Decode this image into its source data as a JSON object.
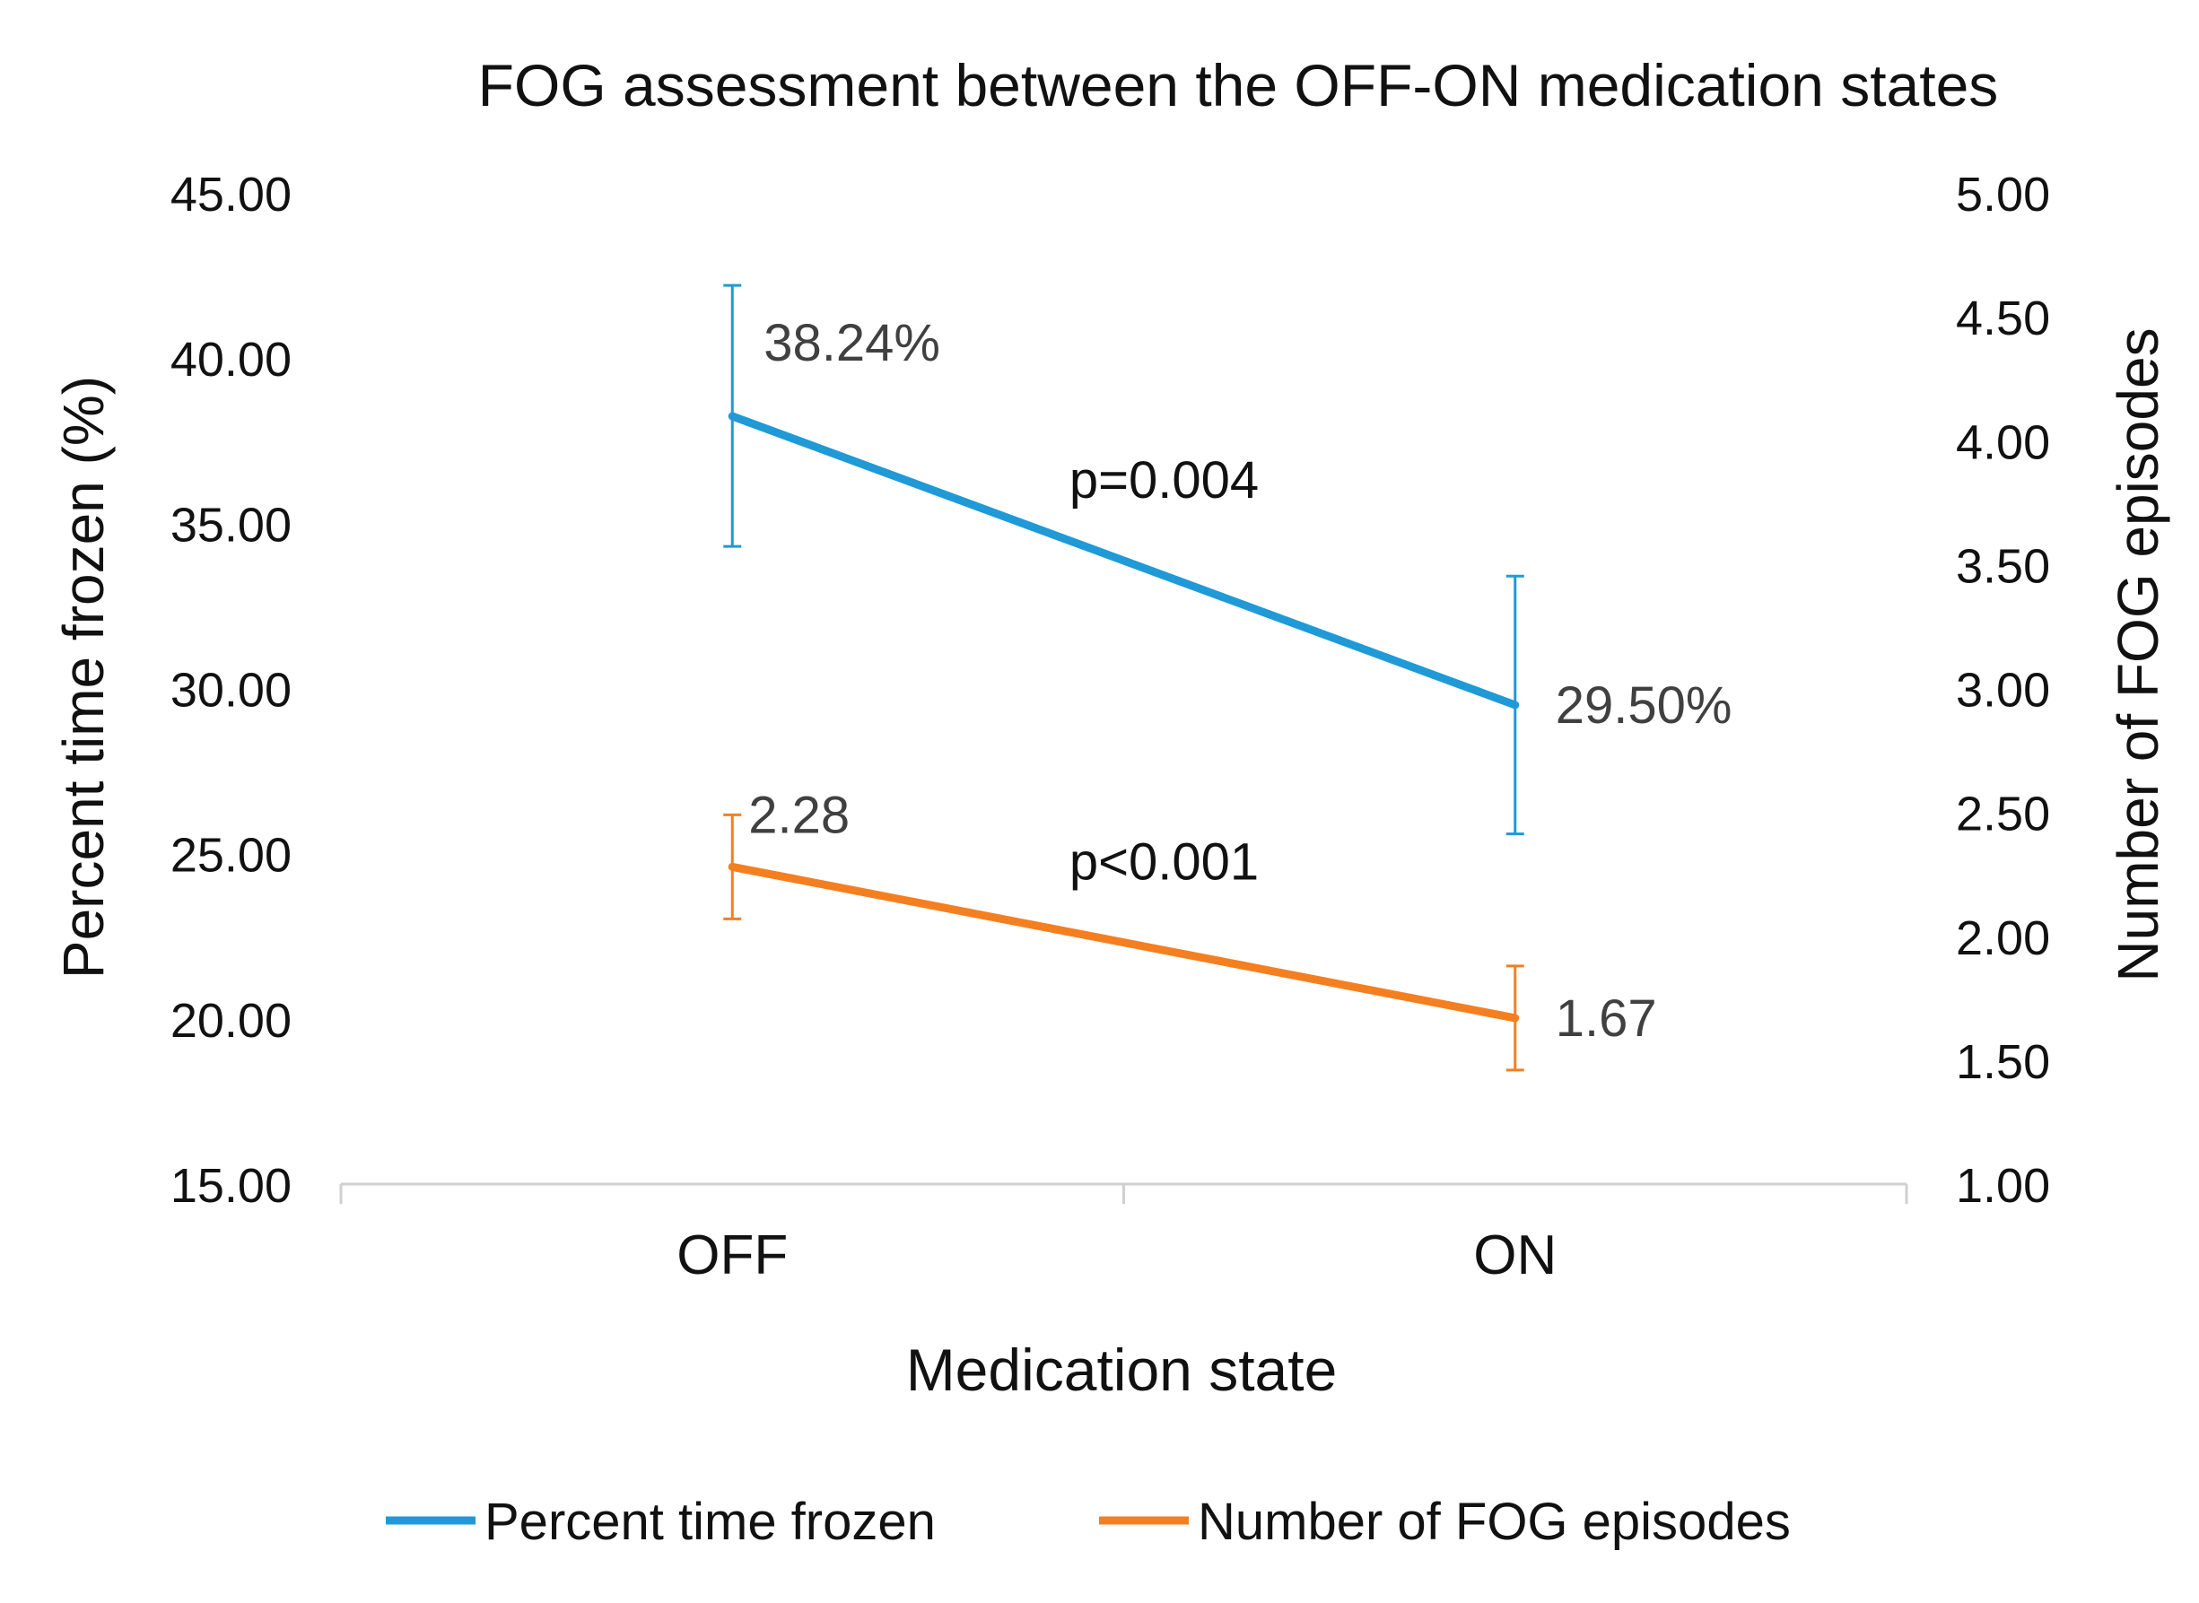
{
  "chart_data": {
    "type": "line",
    "title": "FOG assessment between the OFF-ON medication states",
    "xlabel": "Medication state",
    "ylabel_left": "Percent time frozen (%)",
    "ylabel_right": "Number of FOG episodes",
    "categories": [
      "OFF",
      "ON"
    ],
    "y_left": {
      "min": 15,
      "max": 45,
      "step": 5,
      "tick_labels": [
        "15.00",
        "20.00",
        "25.00",
        "30.00",
        "35.00",
        "40.00",
        "45.00"
      ]
    },
    "y_right": {
      "min": 1,
      "max": 5,
      "step": 0.5,
      "tick_labels": [
        "1.00",
        "1.50",
        "2.00",
        "2.50",
        "3.00",
        "3.50",
        "4.00",
        "4.50",
        "5.00"
      ]
    },
    "grid": false,
    "legend_position": "bottom",
    "series": [
      {
        "name": "Percent time frozen",
        "axis": "left",
        "color": "#1f9ad6",
        "values": [
          38.24,
          29.5
        ],
        "error_low": [
          34.3,
          25.6
        ],
        "error_high": [
          42.2,
          33.4
        ],
        "data_labels": [
          "38.24%",
          "29.50%"
        ]
      },
      {
        "name": "Number of FOG episodes",
        "axis": "right",
        "color": "#f47f20",
        "values": [
          2.28,
          1.67
        ],
        "error_low": [
          2.07,
          1.46
        ],
        "error_high": [
          2.49,
          1.88
        ],
        "data_labels": [
          "2.28",
          "1.67"
        ]
      }
    ],
    "annotations": [
      {
        "text": "p=0.004",
        "series": 0
      },
      {
        "text": "p<0.001",
        "series": 1
      }
    ]
  }
}
